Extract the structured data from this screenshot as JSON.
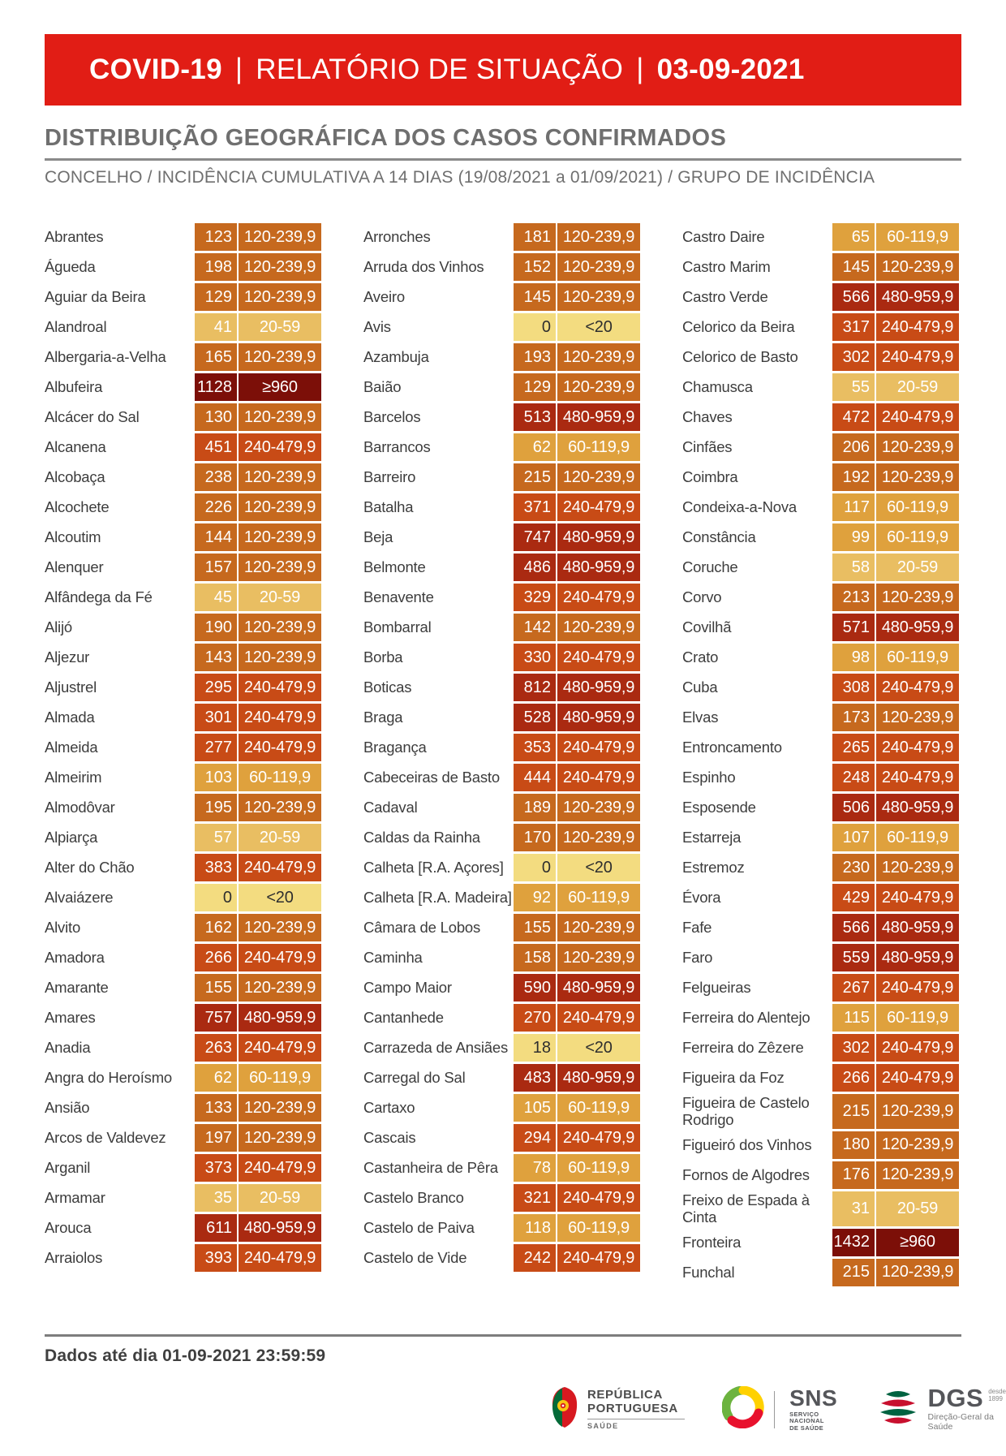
{
  "banner": {
    "product": "COVID-19",
    "separator": "|",
    "report": "RELATÓRIO DE SITUAÇÃO",
    "date": "03-09-2021",
    "bg_color": "#e11d15"
  },
  "section": {
    "title": "DISTRIBUIÇÃO GEOGRÁFICA DOS CASOS CONFIRMADOS",
    "subtitle": "CONCELHO / INCIDÊNCIA CUMULATIVA A 14 DIAS (19/08/2021 a 01/09/2021) / GRUPO DE INCIDÊNCIA"
  },
  "incidence_groups": {
    "<20": {
      "bg": "#f3dc80",
      "fg": "#2e2e2e"
    },
    "20-59": {
      "bg": "#e9be62",
      "fg": "#ffffff"
    },
    "60-119,9": {
      "bg": "#dfa13d",
      "fg": "#ffffff"
    },
    "120-239,9": {
      "bg": "#c6691e",
      "fg": "#ffffff"
    },
    "240-479,9": {
      "bg": "#c84b16",
      "fg": "#ffffff"
    },
    "480-959,9": {
      "bg": "#aa2a11",
      "fg": "#ffffff"
    },
    "≥960": {
      "bg": "#7c0f08",
      "fg": "#ffffff"
    }
  },
  "columns": [
    [
      {
        "name": "Abrantes",
        "value": "123",
        "group": "120-239,9"
      },
      {
        "name": "Águeda",
        "value": "198",
        "group": "120-239,9"
      },
      {
        "name": "Aguiar da Beira",
        "value": "129",
        "group": "120-239,9"
      },
      {
        "name": "Alandroal",
        "value": "41",
        "group": "20-59"
      },
      {
        "name": "Albergaria-a-Velha",
        "value": "165",
        "group": "120-239,9"
      },
      {
        "name": "Albufeira",
        "value": "1128",
        "group": "≥960"
      },
      {
        "name": "Alcácer do Sal",
        "value": "130",
        "group": "120-239,9"
      },
      {
        "name": "Alcanena",
        "value": "451",
        "group": "240-479,9"
      },
      {
        "name": "Alcobaça",
        "value": "238",
        "group": "120-239,9"
      },
      {
        "name": "Alcochete",
        "value": "226",
        "group": "120-239,9"
      },
      {
        "name": "Alcoutim",
        "value": "144",
        "group": "120-239,9"
      },
      {
        "name": "Alenquer",
        "value": "157",
        "group": "120-239,9"
      },
      {
        "name": "Alfândega da Fé",
        "value": "45",
        "group": "20-59"
      },
      {
        "name": "Alijó",
        "value": "190",
        "group": "120-239,9"
      },
      {
        "name": "Aljezur",
        "value": "143",
        "group": "120-239,9"
      },
      {
        "name": "Aljustrel",
        "value": "295",
        "group": "240-479,9"
      },
      {
        "name": "Almada",
        "value": "301",
        "group": "240-479,9"
      },
      {
        "name": "Almeida",
        "value": "277",
        "group": "240-479,9"
      },
      {
        "name": "Almeirim",
        "value": "103",
        "group": "60-119,9"
      },
      {
        "name": "Almodôvar",
        "value": "195",
        "group": "120-239,9"
      },
      {
        "name": "Alpiarça",
        "value": "57",
        "group": "20-59"
      },
      {
        "name": "Alter do Chão",
        "value": "383",
        "group": "240-479,9"
      },
      {
        "name": "Alvaiázere",
        "value": "0",
        "group": "<20"
      },
      {
        "name": "Alvito",
        "value": "162",
        "group": "120-239,9"
      },
      {
        "name": "Amadora",
        "value": "266",
        "group": "240-479,9"
      },
      {
        "name": "Amarante",
        "value": "155",
        "group": "120-239,9"
      },
      {
        "name": "Amares",
        "value": "757",
        "group": "480-959,9"
      },
      {
        "name": "Anadia",
        "value": "263",
        "group": "240-479,9"
      },
      {
        "name": "Angra do Heroísmo",
        "value": "62",
        "group": "60-119,9"
      },
      {
        "name": "Ansião",
        "value": "133",
        "group": "120-239,9"
      },
      {
        "name": "Arcos de Valdevez",
        "value": "197",
        "group": "120-239,9"
      },
      {
        "name": "Arganil",
        "value": "373",
        "group": "240-479,9"
      },
      {
        "name": "Armamar",
        "value": "35",
        "group": "20-59"
      },
      {
        "name": "Arouca",
        "value": "611",
        "group": "480-959,9"
      },
      {
        "name": "Arraiolos",
        "value": "393",
        "group": "240-479,9"
      }
    ],
    [
      {
        "name": "Arronches",
        "value": "181",
        "group": "120-239,9"
      },
      {
        "name": "Arruda dos Vinhos",
        "value": "152",
        "group": "120-239,9"
      },
      {
        "name": "Aveiro",
        "value": "145",
        "group": "120-239,9"
      },
      {
        "name": "Avis",
        "value": "0",
        "group": "<20"
      },
      {
        "name": "Azambuja",
        "value": "193",
        "group": "120-239,9"
      },
      {
        "name": "Baião",
        "value": "129",
        "group": "120-239,9"
      },
      {
        "name": "Barcelos",
        "value": "513",
        "group": "480-959,9"
      },
      {
        "name": "Barrancos",
        "value": "62",
        "group": "60-119,9"
      },
      {
        "name": "Barreiro",
        "value": "215",
        "group": "120-239,9"
      },
      {
        "name": "Batalha",
        "value": "371",
        "group": "240-479,9"
      },
      {
        "name": "Beja",
        "value": "747",
        "group": "480-959,9"
      },
      {
        "name": "Belmonte",
        "value": "486",
        "group": "480-959,9"
      },
      {
        "name": "Benavente",
        "value": "329",
        "group": "240-479,9"
      },
      {
        "name": "Bombarral",
        "value": "142",
        "group": "120-239,9"
      },
      {
        "name": "Borba",
        "value": "330",
        "group": "240-479,9"
      },
      {
        "name": "Boticas",
        "value": "812",
        "group": "480-959,9"
      },
      {
        "name": "Braga",
        "value": "528",
        "group": "480-959,9"
      },
      {
        "name": "Bragança",
        "value": "353",
        "group": "240-479,9"
      },
      {
        "name": "Cabeceiras de Basto",
        "value": "444",
        "group": "240-479,9"
      },
      {
        "name": "Cadaval",
        "value": "189",
        "group": "120-239,9"
      },
      {
        "name": "Caldas da Rainha",
        "value": "170",
        "group": "120-239,9"
      },
      {
        "name": "Calheta [R.A. Açores]",
        "value": "0",
        "group": "<20"
      },
      {
        "name": "Calheta [R.A. Madeira]",
        "value": "92",
        "group": "60-119,9"
      },
      {
        "name": "Câmara de Lobos",
        "value": "155",
        "group": "120-239,9"
      },
      {
        "name": "Caminha",
        "value": "158",
        "group": "120-239,9"
      },
      {
        "name": "Campo Maior",
        "value": "590",
        "group": "480-959,9"
      },
      {
        "name": "Cantanhede",
        "value": "270",
        "group": "240-479,9"
      },
      {
        "name": "Carrazeda de Ansiães",
        "value": "18",
        "group": "<20"
      },
      {
        "name": "Carregal do Sal",
        "value": "483",
        "group": "480-959,9"
      },
      {
        "name": "Cartaxo",
        "value": "105",
        "group": "60-119,9"
      },
      {
        "name": "Cascais",
        "value": "294",
        "group": "240-479,9"
      },
      {
        "name": "Castanheira de Pêra",
        "value": "78",
        "group": "60-119,9"
      },
      {
        "name": "Castelo Branco",
        "value": "321",
        "group": "240-479,9"
      },
      {
        "name": "Castelo de Paiva",
        "value": "118",
        "group": "60-119,9"
      },
      {
        "name": "Castelo de Vide",
        "value": "242",
        "group": "240-479,9"
      }
    ],
    [
      {
        "name": "Castro Daire",
        "value": "65",
        "group": "60-119,9"
      },
      {
        "name": "Castro Marim",
        "value": "145",
        "group": "120-239,9"
      },
      {
        "name": "Castro Verde",
        "value": "566",
        "group": "480-959,9"
      },
      {
        "name": "Celorico da Beira",
        "value": "317",
        "group": "240-479,9"
      },
      {
        "name": "Celorico de Basto",
        "value": "302",
        "group": "240-479,9"
      },
      {
        "name": "Chamusca",
        "value": "55",
        "group": "20-59"
      },
      {
        "name": "Chaves",
        "value": "472",
        "group": "240-479,9"
      },
      {
        "name": "Cinfães",
        "value": "206",
        "group": "120-239,9"
      },
      {
        "name": "Coimbra",
        "value": "192",
        "group": "120-239,9"
      },
      {
        "name": "Condeixa-a-Nova",
        "value": "117",
        "group": "60-119,9"
      },
      {
        "name": "Constância",
        "value": "99",
        "group": "60-119,9"
      },
      {
        "name": "Coruche",
        "value": "58",
        "group": "20-59"
      },
      {
        "name": "Corvo",
        "value": "213",
        "group": "120-239,9"
      },
      {
        "name": "Covilhã",
        "value": "571",
        "group": "480-959,9"
      },
      {
        "name": "Crato",
        "value": "98",
        "group": "60-119,9"
      },
      {
        "name": "Cuba",
        "value": "308",
        "group": "240-479,9"
      },
      {
        "name": "Elvas",
        "value": "173",
        "group": "120-239,9"
      },
      {
        "name": "Entroncamento",
        "value": "265",
        "group": "240-479,9"
      },
      {
        "name": "Espinho",
        "value": "248",
        "group": "240-479,9"
      },
      {
        "name": "Esposende",
        "value": "506",
        "group": "480-959,9"
      },
      {
        "name": "Estarreja",
        "value": "107",
        "group": "60-119,9"
      },
      {
        "name": "Estremoz",
        "value": "230",
        "group": "120-239,9"
      },
      {
        "name": "Évora",
        "value": "429",
        "group": "240-479,9"
      },
      {
        "name": "Fafe",
        "value": "566",
        "group": "480-959,9"
      },
      {
        "name": "Faro",
        "value": "559",
        "group": "480-959,9"
      },
      {
        "name": "Felgueiras",
        "value": "267",
        "group": "240-479,9"
      },
      {
        "name": "Ferreira do Alentejo",
        "value": "115",
        "group": "60-119,9"
      },
      {
        "name": "Ferreira do Zêzere",
        "value": "302",
        "group": "240-479,9"
      },
      {
        "name": "Figueira da Foz",
        "value": "266",
        "group": "240-479,9"
      },
      {
        "name": "Figueira de Castelo Rodrigo",
        "value": "215",
        "group": "120-239,9"
      },
      {
        "name": "Figueiró dos Vinhos",
        "value": "180",
        "group": "120-239,9"
      },
      {
        "name": "Fornos de Algodres",
        "value": "176",
        "group": "120-239,9"
      },
      {
        "name": "Freixo de Espada à Cinta",
        "value": "31",
        "group": "20-59"
      },
      {
        "name": "Fronteira",
        "value": "1432",
        "group": "≥960"
      },
      {
        "name": "Funchal",
        "value": "215",
        "group": "120-239,9"
      }
    ]
  ],
  "footer": {
    "note": "Dados até dia 01-09-2021 23:59:59"
  },
  "logos": {
    "republica": {
      "line1": "REPÚBLICA",
      "line2": "PORTUGUESA",
      "sub": "SAÚDE"
    },
    "sns": {
      "abbr": "SNS",
      "sub1": "SERVIÇO NACIONAL",
      "sub2": "DE SAÚDE"
    },
    "dgs": {
      "abbr": "DGS",
      "since1": "desde",
      "since2": "1899",
      "sub": "Direção-Geral da Saúde"
    }
  }
}
